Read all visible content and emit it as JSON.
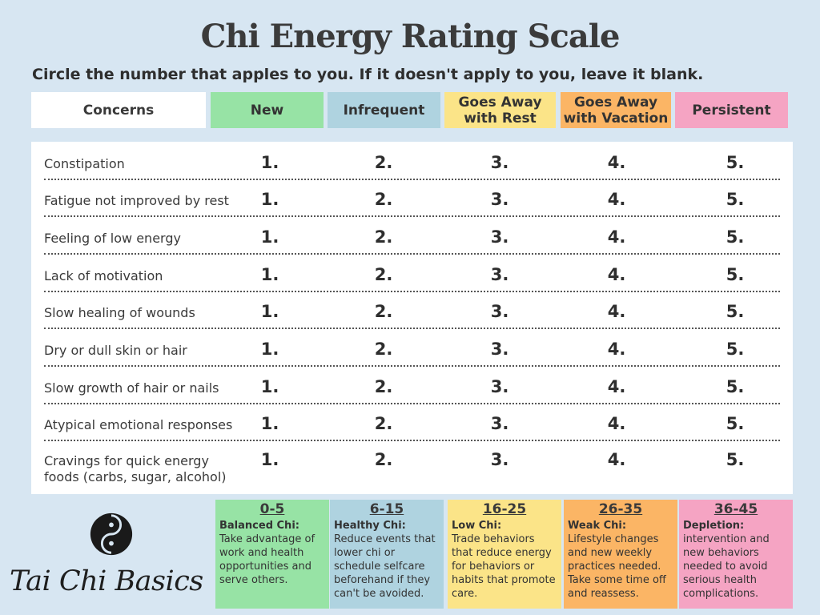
{
  "title": "Chi Energy Rating Scale",
  "instructions": "Circle the number that apples to you. If it doesn't apply to you, leave it blank.",
  "headers": {
    "concerns": "Concerns",
    "new": "New",
    "infrequent": "Infrequent",
    "rest_line1": "Goes Away",
    "rest_line2": "with Rest",
    "vacation_line1": "Goes Away",
    "vacation_line2": "with Vacation",
    "persistent": "Persistent"
  },
  "ratings": [
    "1.",
    "2.",
    "3.",
    "4.",
    "5."
  ],
  "concerns": [
    {
      "line1": "Constipation",
      "line2": ""
    },
    {
      "line1": "Fatigue not improved by rest",
      "line2": ""
    },
    {
      "line1": "Feeling of low energy",
      "line2": ""
    },
    {
      "line1": "Lack of motivation",
      "line2": ""
    },
    {
      "line1": "Slow healing of wounds",
      "line2": ""
    },
    {
      "line1": "Dry or dull skin or hair",
      "line2": ""
    },
    {
      "line1": "Slow growth of hair or nails",
      "line2": ""
    },
    {
      "line1": "Atypical emotional responses",
      "line2": ""
    },
    {
      "line1": "Cravings for quick energy",
      "line2": "foods (carbs, sugar, alcohol)"
    }
  ],
  "legend": [
    {
      "range": "0-5",
      "name": "Balanced Chi:",
      "text": "Take advantage of work and health opportunities and serve others.",
      "color": "#97e3a5"
    },
    {
      "range": "6-15",
      "name": "Healthy Chi:",
      "text": "Reduce events that lower chi or schedule selfcare beforehand if they can't be avoided.",
      "color": "#afd3e0"
    },
    {
      "range": "16-25",
      "name": "Low Chi:",
      "text": "Trade behaviors that reduce energy for behaviors or habits that promote care.",
      "color": "#fbe488"
    },
    {
      "range": "26-35",
      "name": "Weak Chi:",
      "text": "Lifestyle changes and new weekly practices needed. Take some time off and reassess.",
      "color": "#fbb565"
    },
    {
      "range": "36-45",
      "name": "Depletion:",
      "text": "intervention and new behaviors needed to avoid serious health complications.",
      "color": "#f5a4c3"
    }
  ],
  "logo": {
    "text": "Tai Chi Basics",
    "icon": "yin-yang-icon"
  }
}
